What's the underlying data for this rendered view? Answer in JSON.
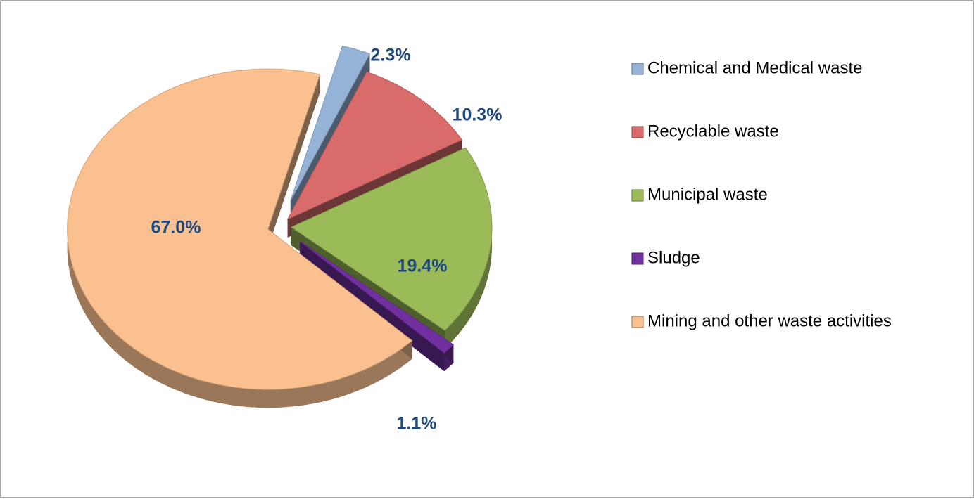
{
  "chart_data": {
    "type": "pie",
    "categories": [
      "Chemical and Medical waste",
      "Recyclable waste",
      "Municipal waste",
      "Sludge",
      "Mining and other waste activities"
    ],
    "values": [
      2.3,
      10.3,
      19.4,
      1.1,
      67.0
    ],
    "value_labels": [
      "2.3%",
      "10.3%",
      "19.4%",
      "1.1%",
      "67.0%"
    ],
    "colors": [
      "#95b3d7",
      "#d96b6b",
      "#9bbb59",
      "#7030a0",
      "#fac090"
    ],
    "legend": "right"
  }
}
